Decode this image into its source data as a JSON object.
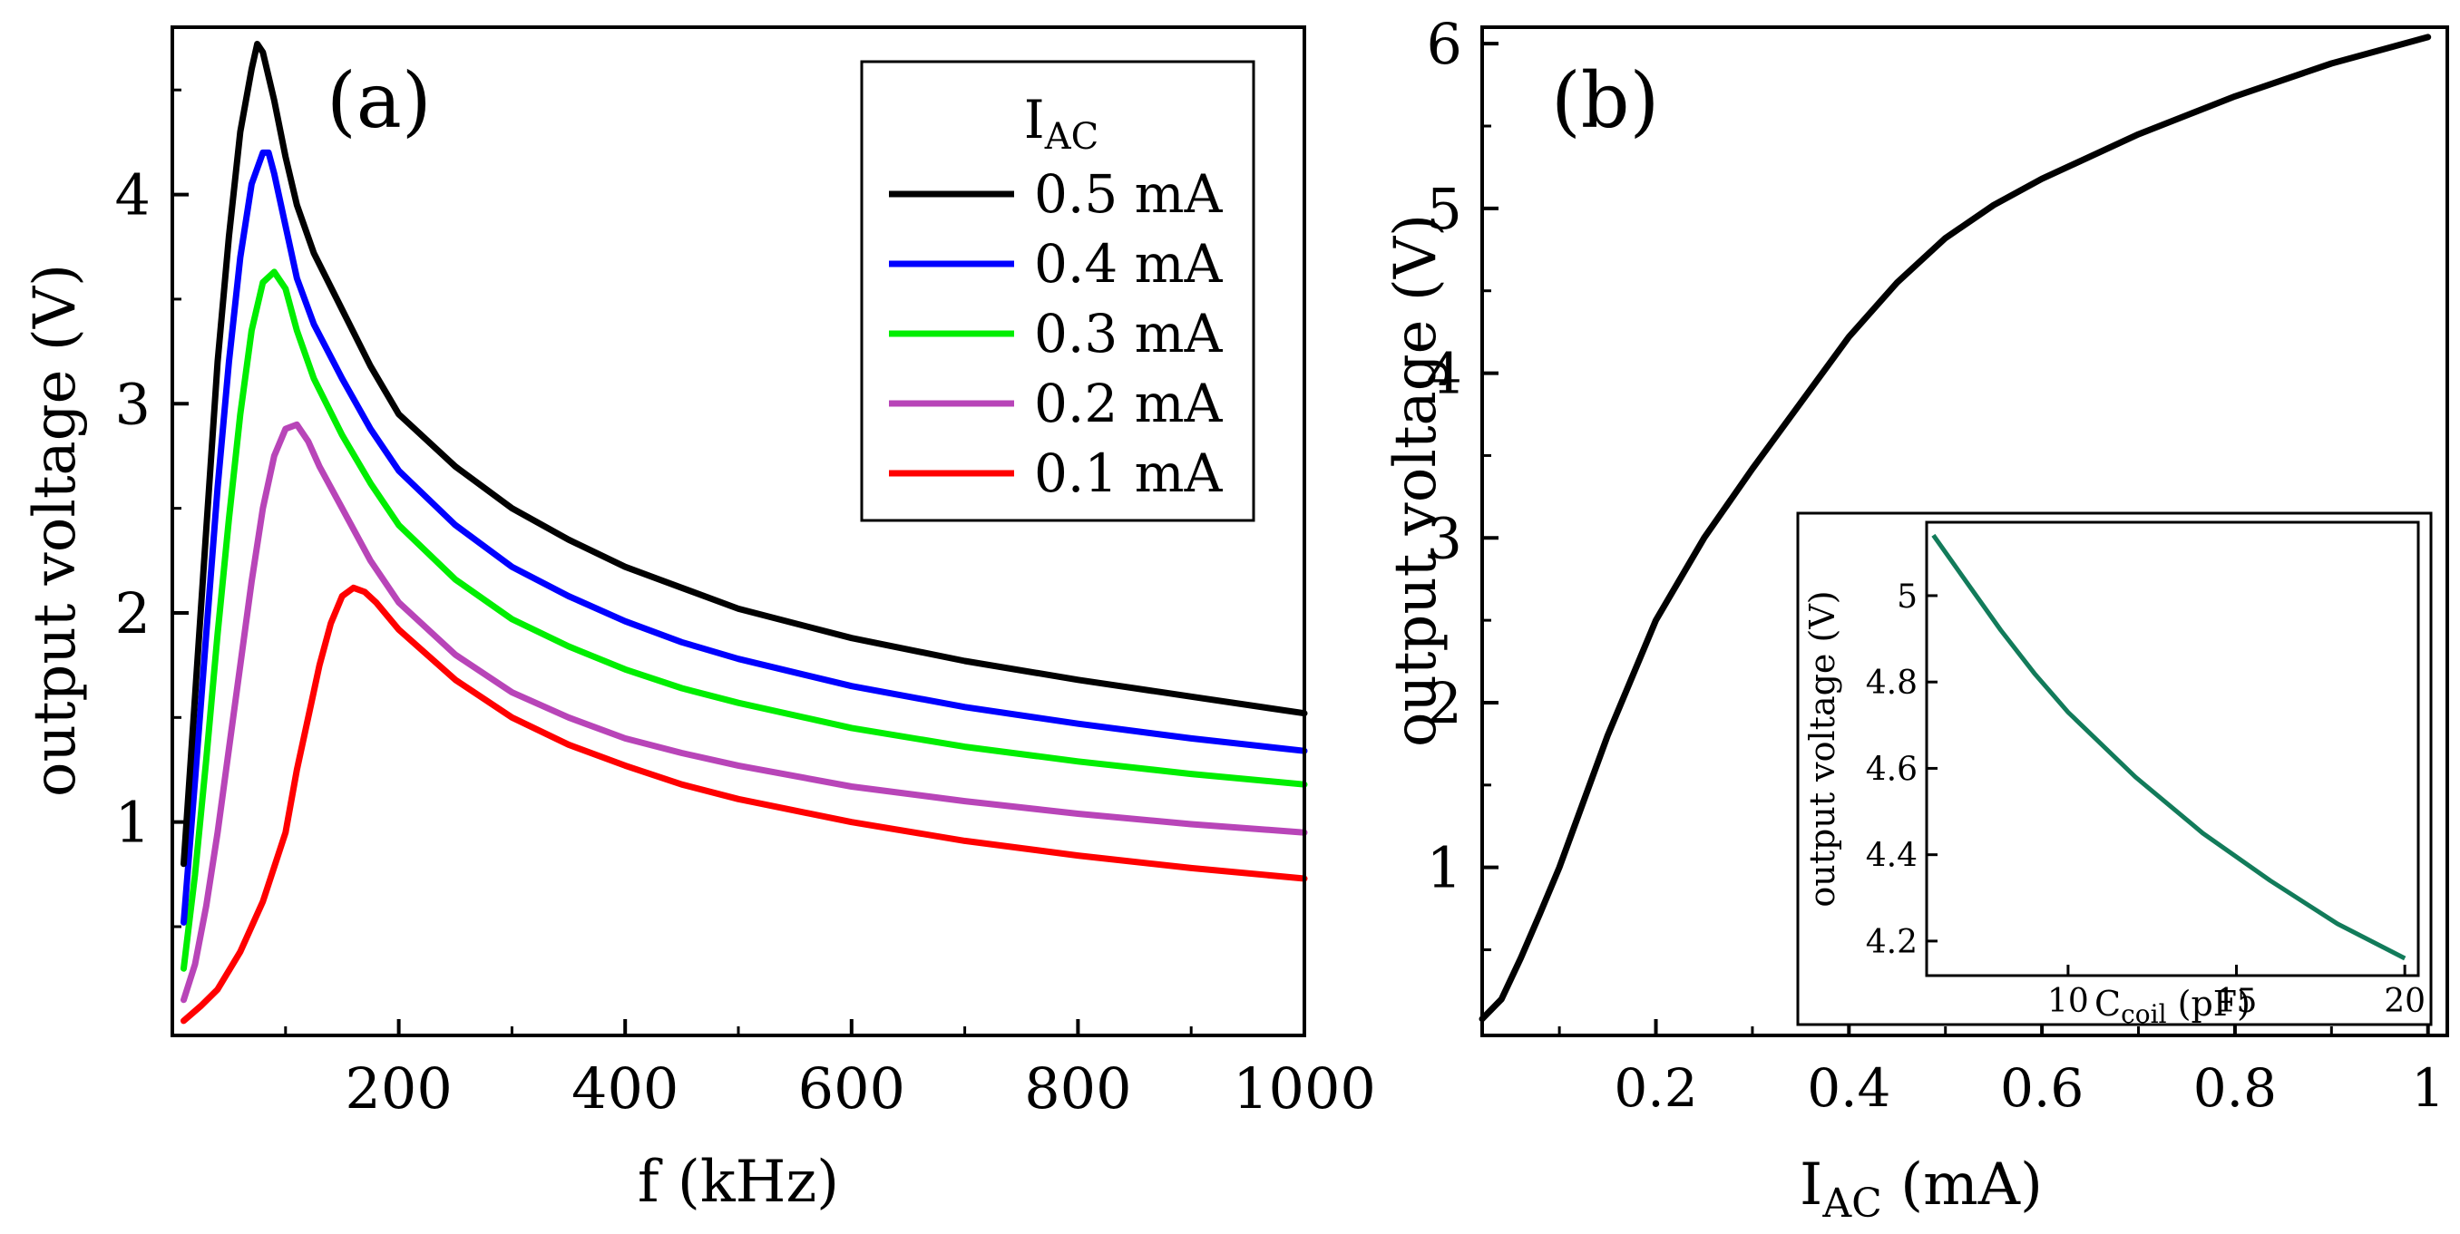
{
  "chart_data": [
    {
      "type": "line",
      "panel_label": "(a)",
      "title": "",
      "xlabel": "f (kHz)",
      "ylabel": "output voltage (V)",
      "xlim": [
        0,
        1000
      ],
      "ylim": [
        -0.02,
        4.8
      ],
      "xticks": [
        200,
        400,
        600,
        800,
        1000
      ],
      "yticks": [
        1,
        2,
        3,
        4
      ],
      "legend": {
        "title_main": "I",
        "title_sub": "AC",
        "position": "top-right"
      },
      "series": [
        {
          "name": "0.5 mA",
          "color": "#000000",
          "x": [
            10,
            20,
            30,
            40,
            50,
            60,
            70,
            75,
            80,
            90,
            100,
            110,
            125,
            150,
            175,
            200,
            250,
            300,
            350,
            400,
            450,
            500,
            600,
            700,
            800,
            900,
            1000
          ],
          "y": [
            0.8,
            1.6,
            2.4,
            3.2,
            3.8,
            4.3,
            4.6,
            4.72,
            4.68,
            4.45,
            4.18,
            3.95,
            3.72,
            3.45,
            3.18,
            2.95,
            2.7,
            2.5,
            2.35,
            2.22,
            2.12,
            2.02,
            1.88,
            1.77,
            1.68,
            1.6,
            1.52
          ]
        },
        {
          "name": "0.4 mA",
          "color": "#0000ff",
          "x": [
            10,
            20,
            30,
            40,
            50,
            60,
            70,
            80,
            85,
            90,
            100,
            110,
            125,
            150,
            175,
            200,
            250,
            300,
            350,
            400,
            450,
            500,
            600,
            700,
            800,
            900,
            1000
          ],
          "y": [
            0.52,
            1.2,
            1.9,
            2.6,
            3.2,
            3.7,
            4.05,
            4.2,
            4.2,
            4.1,
            3.85,
            3.6,
            3.38,
            3.12,
            2.88,
            2.68,
            2.42,
            2.22,
            2.08,
            1.96,
            1.86,
            1.78,
            1.65,
            1.55,
            1.47,
            1.4,
            1.34
          ]
        },
        {
          "name": "0.3 mA",
          "color": "#00ee00",
          "x": [
            10,
            20,
            30,
            40,
            50,
            60,
            70,
            80,
            90,
            100,
            110,
            125,
            150,
            175,
            200,
            250,
            300,
            350,
            400,
            450,
            500,
            600,
            700,
            800,
            900,
            1000
          ],
          "y": [
            0.3,
            0.75,
            1.3,
            1.9,
            2.45,
            2.95,
            3.35,
            3.58,
            3.63,
            3.55,
            3.35,
            3.12,
            2.85,
            2.62,
            2.42,
            2.16,
            1.97,
            1.84,
            1.73,
            1.64,
            1.57,
            1.45,
            1.36,
            1.29,
            1.23,
            1.18
          ]
        },
        {
          "name": "0.2 mA",
          "color": "#b845b8",
          "x": [
            10,
            20,
            30,
            40,
            50,
            60,
            70,
            80,
            90,
            100,
            110,
            120,
            130,
            150,
            175,
            200,
            250,
            300,
            350,
            400,
            450,
            500,
            600,
            700,
            800,
            900,
            1000
          ],
          "y": [
            0.15,
            0.32,
            0.6,
            0.95,
            1.35,
            1.75,
            2.15,
            2.5,
            2.75,
            2.88,
            2.9,
            2.82,
            2.7,
            2.5,
            2.25,
            2.05,
            1.8,
            1.62,
            1.5,
            1.4,
            1.33,
            1.27,
            1.17,
            1.1,
            1.04,
            0.99,
            0.95
          ]
        },
        {
          "name": "0.1 mA",
          "color": "#ff0000",
          "x": [
            10,
            25,
            40,
            60,
            80,
            100,
            110,
            120,
            130,
            140,
            150,
            160,
            170,
            180,
            200,
            250,
            300,
            350,
            400,
            450,
            500,
            600,
            700,
            800,
            900,
            1000
          ],
          "y": [
            0.05,
            0.12,
            0.2,
            0.38,
            0.62,
            0.95,
            1.25,
            1.5,
            1.75,
            1.95,
            2.08,
            2.12,
            2.1,
            2.05,
            1.92,
            1.68,
            1.5,
            1.37,
            1.27,
            1.18,
            1.11,
            1.0,
            0.91,
            0.84,
            0.78,
            0.73
          ]
        }
      ]
    },
    {
      "type": "line",
      "panel_label": "(b)",
      "title": "",
      "xlabel_main": "I",
      "xlabel_sub": "AC",
      "xlabel_unit": " (mA)",
      "ylabel": "output voltage (V)",
      "xlim": [
        0.02,
        1.02
      ],
      "ylim": [
        -0.02,
        6.1
      ],
      "xticks": [
        0.2,
        0.4,
        0.6,
        0.8,
        1
      ],
      "xtick_labels": [
        "0.2",
        "0.4",
        "0.6",
        "0.8",
        "1"
      ],
      "yticks": [
        1,
        2,
        3,
        4,
        5,
        6
      ],
      "series": [
        {
          "name": "output voltage",
          "color": "#000000",
          "x": [
            0.02,
            0.04,
            0.06,
            0.08,
            0.1,
            0.12,
            0.15,
            0.2,
            0.25,
            0.3,
            0.35,
            0.4,
            0.45,
            0.5,
            0.55,
            0.6,
            0.7,
            0.8,
            0.9,
            1.0
          ],
          "y": [
            0.08,
            0.2,
            0.45,
            0.72,
            1.0,
            1.32,
            1.8,
            2.5,
            3.0,
            3.42,
            3.82,
            4.22,
            4.55,
            4.82,
            5.02,
            5.18,
            5.45,
            5.68,
            5.88,
            6.04
          ]
        }
      ]
    },
    {
      "type": "line",
      "panel_label": "inset",
      "title": "",
      "xlabel_main": "C",
      "xlabel_sub": "coil",
      "xlabel_unit": " (pF)",
      "ylabel": "output voltage (V)",
      "xlim": [
        5.8,
        20.4
      ],
      "ylim": [
        4.12,
        5.17
      ],
      "xticks": [
        10,
        15,
        20
      ],
      "yticks": [
        4.2,
        4.4,
        4.6,
        4.8,
        5.0
      ],
      "ytick_labels": [
        "4.2",
        "4.4",
        "4.6",
        "4.8",
        "5"
      ],
      "series": [
        {
          "name": "output voltage vs Ccoil",
          "color": "#127b5a",
          "x": [
            6,
            7,
            8,
            9,
            10,
            12,
            14,
            16,
            18,
            20
          ],
          "y": [
            5.14,
            5.03,
            4.92,
            4.82,
            4.73,
            4.58,
            4.45,
            4.34,
            4.24,
            4.16
          ]
        }
      ]
    }
  ]
}
